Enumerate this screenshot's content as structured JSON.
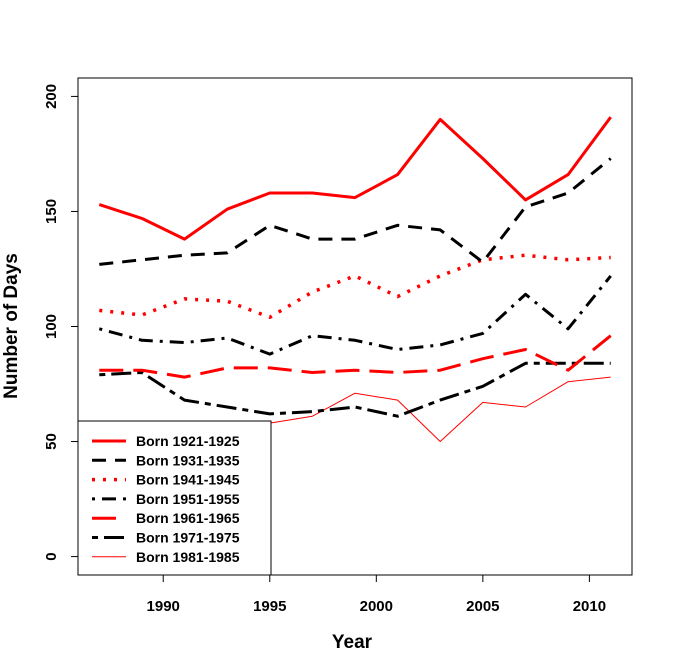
{
  "chart_data": {
    "type": "line",
    "title": "",
    "xlabel": "Year",
    "ylabel": "Number of Days",
    "xlim": [
      1986,
      2012
    ],
    "ylim": [
      -8,
      208
    ],
    "xticks": [
      1990,
      1995,
      2000,
      2005,
      2010
    ],
    "yticks": [
      0,
      50,
      100,
      150,
      200
    ],
    "grid": false,
    "legend_position": "bottom-left",
    "x": [
      1987,
      1989,
      1991,
      1993,
      1995,
      1997,
      1999,
      2001,
      2003,
      2005,
      2007,
      2009,
      2011
    ],
    "series": [
      {
        "name": "Born 1921-1925",
        "color": "#ff0000",
        "style": "solid",
        "width": 3,
        "values": [
          153,
          147,
          138,
          151,
          158,
          158,
          156,
          166,
          190,
          173,
          155,
          166,
          191
        ]
      },
      {
        "name": "Born 1931-1935",
        "color": "#000000",
        "style": "dashed",
        "width": 3,
        "values": [
          127,
          129,
          131,
          132,
          144,
          138,
          138,
          144,
          142,
          128,
          152,
          158,
          173
        ]
      },
      {
        "name": "Born 1941-1945",
        "color": "#ff0000",
        "style": "dotted",
        "width": 3.5,
        "values": [
          107,
          105,
          112,
          111,
          104,
          115,
          122,
          113,
          122,
          129,
          131,
          129,
          130
        ]
      },
      {
        "name": "Born 1951-1955",
        "color": "#000000",
        "style": "dotdash",
        "width": 3,
        "values": [
          99,
          94,
          93,
          95,
          88,
          96,
          94,
          90,
          92,
          97,
          114,
          99,
          122
        ]
      },
      {
        "name": "Born 1961-1965",
        "color": "#ff0000",
        "style": "longdash",
        "width": 3,
        "values": [
          81,
          81,
          78,
          82,
          82,
          80,
          81,
          80,
          81,
          86,
          90,
          81,
          96
        ]
      },
      {
        "name": "Born 1971-1975",
        "color": "#000000",
        "style": "twodash",
        "width": 3,
        "values": [
          79,
          80,
          68,
          65,
          62,
          63,
          65,
          61,
          68,
          74,
          84,
          84,
          84
        ]
      },
      {
        "name": "Born 1981-1985",
        "color": "#ff0000",
        "style": "solid",
        "width": 1,
        "values": [
          null,
          null,
          null,
          null,
          58,
          61,
          71,
          68,
          50,
          67,
          65,
          76,
          78
        ]
      }
    ]
  }
}
